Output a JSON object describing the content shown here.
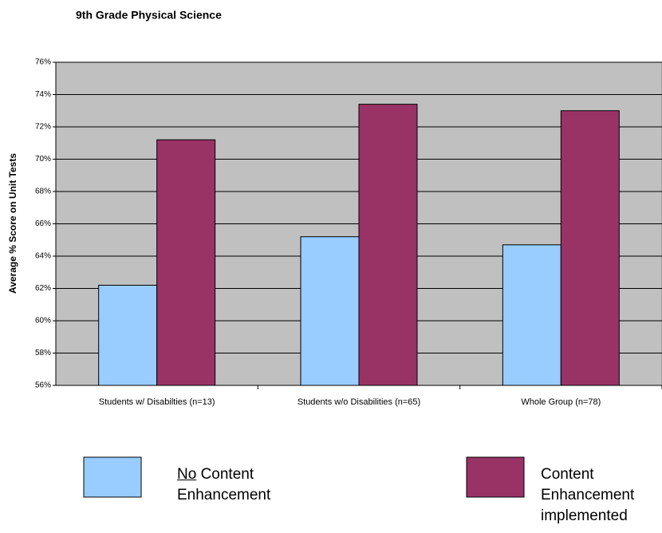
{
  "chart_data": {
    "type": "bar",
    "title": "9th Grade Physical Science",
    "y_label": "Average % Score on Unit Tests",
    "categories": [
      "Students w/ Disabilties (n=13)",
      "Students w/o Disabilities (n=65)",
      "Whole Group (n=78)"
    ],
    "series": [
      {
        "name": "No Content Enhancement",
        "color": "#99ccff",
        "values": [
          62.2,
          65.2,
          64.7
        ]
      },
      {
        "name": "Content Enhancement implemented",
        "color": "#993366",
        "values": [
          71.2,
          73.4,
          73.0
        ]
      }
    ],
    "ylim": [
      56,
      76
    ],
    "yticks": [
      {
        "value": 56,
        "label": "56%"
      },
      {
        "value": 58,
        "label": "58%"
      },
      {
        "value": 60,
        "label": "60%"
      },
      {
        "value": 62,
        "label": "62%"
      },
      {
        "value": 64,
        "label": "64%"
      },
      {
        "value": 66,
        "label": "66%"
      },
      {
        "value": 68,
        "label": "68%"
      },
      {
        "value": 70,
        "label": "70%"
      },
      {
        "value": 72,
        "label": "72%"
      },
      {
        "value": 74,
        "label": "74%"
      },
      {
        "value": 76,
        "label": "76%"
      }
    ],
    "grid": true,
    "plot_background": "#c0c0c0"
  }
}
